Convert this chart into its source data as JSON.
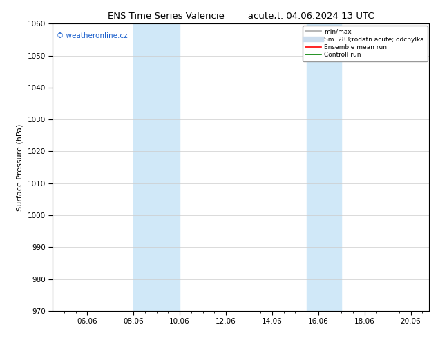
{
  "title_left": "ENS Time Series Valencie",
  "title_right": "acute;t. 04.06.2024 13 UTC",
  "ylabel": "Surface Pressure (hPa)",
  "ylim": [
    970,
    1060
  ],
  "yticks": [
    970,
    980,
    990,
    1000,
    1010,
    1020,
    1030,
    1040,
    1050,
    1060
  ],
  "xlim_start": 4.5,
  "xlim_end": 20.8,
  "xtick_labels": [
    "06.06",
    "08.06",
    "10.06",
    "12.06",
    "14.06",
    "16.06",
    "18.06",
    "20.06"
  ],
  "xtick_positions": [
    6.0,
    8.0,
    10.0,
    12.0,
    14.0,
    16.0,
    18.0,
    20.0
  ],
  "shaded_bands": [
    {
      "xmin": 8.0,
      "xmax": 10.0
    },
    {
      "xmin": 15.5,
      "xmax": 17.0
    }
  ],
  "shade_color": "#d0e8f8",
  "watermark_text": "© weatheronline.cz",
  "watermark_color": "#1a5fcc",
  "legend_entries": [
    {
      "label": "min/max",
      "color": "#aaaaaa",
      "lw": 1.2
    },
    {
      "label": "Sm  283;rodatn acute; odchylka",
      "color": "#ccddee",
      "lw": 6
    },
    {
      "label": "Ensemble mean run",
      "color": "red",
      "lw": 1.2
    },
    {
      "label": "Controll run",
      "color": "green",
      "lw": 1.2
    }
  ],
  "bg_color": "#ffffff",
  "title_fontsize": 9.5,
  "label_fontsize": 8,
  "tick_fontsize": 7.5,
  "watermark_fontsize": 7.5,
  "legend_fontsize": 6.5
}
